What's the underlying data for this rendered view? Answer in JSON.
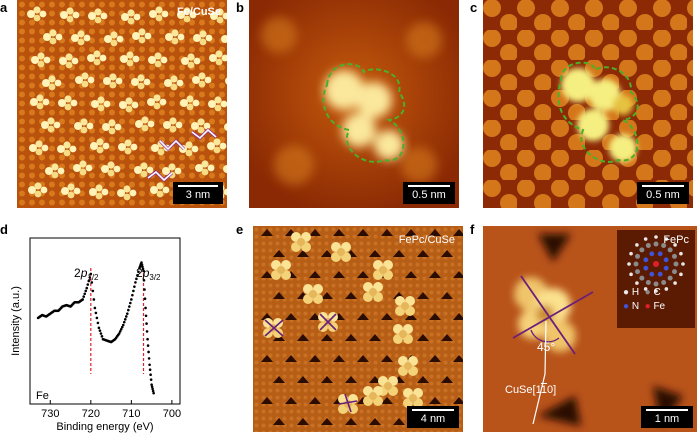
{
  "figure": {
    "panels": {
      "a": {
        "label": "a",
        "tag": "Fe/CuSe",
        "scale": "3 nm"
      },
      "b": {
        "label": "b",
        "scale": "0.5 nm"
      },
      "c": {
        "label": "c",
        "scale": "0.5 nm"
      },
      "d": {
        "label": "d",
        "corner": "Fe"
      },
      "e": {
        "label": "e",
        "tag": "FePc/CuSe",
        "scale": "4 nm"
      },
      "f": {
        "label": "f",
        "tag": "FePc",
        "scale": "1 nm",
        "angle": "45°",
        "direction": "CuSe[1",
        "direction_bar": "1",
        "direction_end": "0]"
      }
    },
    "legend": {
      "h": "H",
      "c": "C",
      "n": "N",
      "fe": "Fe"
    },
    "colors": {
      "gold": "#f0d26e",
      "bright": "#fff3b8",
      "dark": "#8c2a05",
      "mid": "#b54a08",
      "green": "#4caf2a",
      "red": "#e0202a",
      "purple": "#6a1f7a"
    }
  },
  "chart_data": {
    "type": "line",
    "title": "",
    "xlabel": "Binding energy (eV)",
    "ylabel": "Intensity (a.u.)",
    "xlim": [
      735,
      698
    ],
    "x_ticks": [
      "730",
      "720",
      "710",
      "700"
    ],
    "peaks": [
      {
        "label": "2p1/2",
        "x": 720
      },
      {
        "label": "2p3/2",
        "x": 707
      }
    ],
    "peak_labels": {
      "p12_main": "2",
      "p12_p": "p",
      "p12_sub": "1/2",
      "p32_main": "2",
      "p32_p": "p",
      "p32_sub": "3/2"
    },
    "series": [
      {
        "name": "Fe 2p",
        "x": [
          733,
          732,
          731,
          730,
          729,
          728,
          727,
          726,
          725,
          724,
          723,
          722,
          721,
          720,
          719,
          718,
          717,
          716,
          715,
          714,
          713,
          712,
          711,
          710,
          709,
          708,
          707.5,
          707,
          706.5,
          706,
          705.5,
          705,
          704.5
        ],
        "y": [
          0.55,
          0.57,
          0.56,
          0.58,
          0.6,
          0.6,
          0.63,
          0.64,
          0.63,
          0.66,
          0.66,
          0.68,
          0.76,
          0.86,
          0.62,
          0.48,
          0.4,
          0.39,
          0.38,
          0.4,
          0.44,
          0.5,
          0.58,
          0.68,
          0.8,
          0.9,
          0.94,
          0.88,
          0.62,
          0.4,
          0.22,
          0.08,
          0.02
        ]
      }
    ]
  }
}
